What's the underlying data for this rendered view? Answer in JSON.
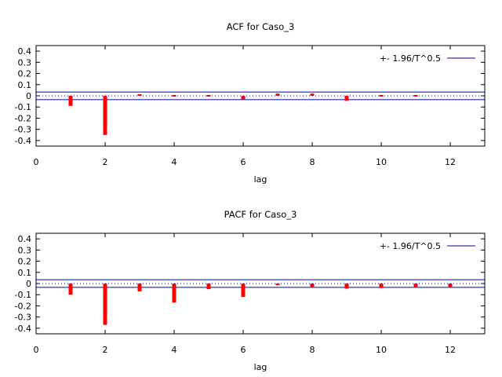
{
  "chart_data": [
    {
      "type": "bar",
      "title": "ACF for Caso_3",
      "xlabel": "lag",
      "ylabel": "",
      "xlim": [
        0,
        13
      ],
      "ylim": [
        -0.45,
        0.45
      ],
      "xticks": [
        "0",
        "2",
        "4",
        "6",
        "8",
        "10",
        "12"
      ],
      "yticks": [
        "0.4",
        "0.3",
        "0.2",
        "0.1",
        "0",
        "-0.1",
        "-0.2",
        "-0.3",
        "-0.4"
      ],
      "lags": [
        1,
        2,
        3,
        4,
        5,
        6,
        7,
        8,
        9,
        10,
        11
      ],
      "values": [
        -0.09,
        -0.35,
        0.015,
        -0.007,
        0.006,
        -0.03,
        0.02,
        0.02,
        -0.045,
        -0.007,
        0.006
      ],
      "band": 0.034,
      "band_label": "+- 1.96/T^0.5",
      "legend_position": "top-right",
      "grid": false,
      "colors": {
        "bars": "#ff0000",
        "band": "#0000a0",
        "zero": "#0000a0"
      }
    },
    {
      "type": "bar",
      "title": "PACF for Caso_3",
      "xlabel": "lag",
      "ylabel": "",
      "xlim": [
        0,
        13
      ],
      "ylim": [
        -0.45,
        0.45
      ],
      "xticks": [
        "0",
        "2",
        "4",
        "6",
        "8",
        "10",
        "12"
      ],
      "yticks": [
        "0.4",
        "0.3",
        "0.2",
        "0.1",
        "0",
        "-0.1",
        "-0.2",
        "-0.3",
        "-0.4"
      ],
      "lags": [
        1,
        2,
        3,
        4,
        5,
        6,
        7,
        8,
        9,
        10,
        11,
        12
      ],
      "values": [
        -0.1,
        -0.37,
        -0.07,
        -0.17,
        -0.05,
        -0.12,
        -0.015,
        -0.035,
        -0.045,
        -0.04,
        -0.035,
        -0.03
      ],
      "band": 0.034,
      "band_label": "+- 1.96/T^0.5",
      "legend_position": "top-right",
      "grid": false,
      "colors": {
        "bars": "#ff0000",
        "band": "#0000a0",
        "zero": "#0000a0"
      }
    }
  ]
}
